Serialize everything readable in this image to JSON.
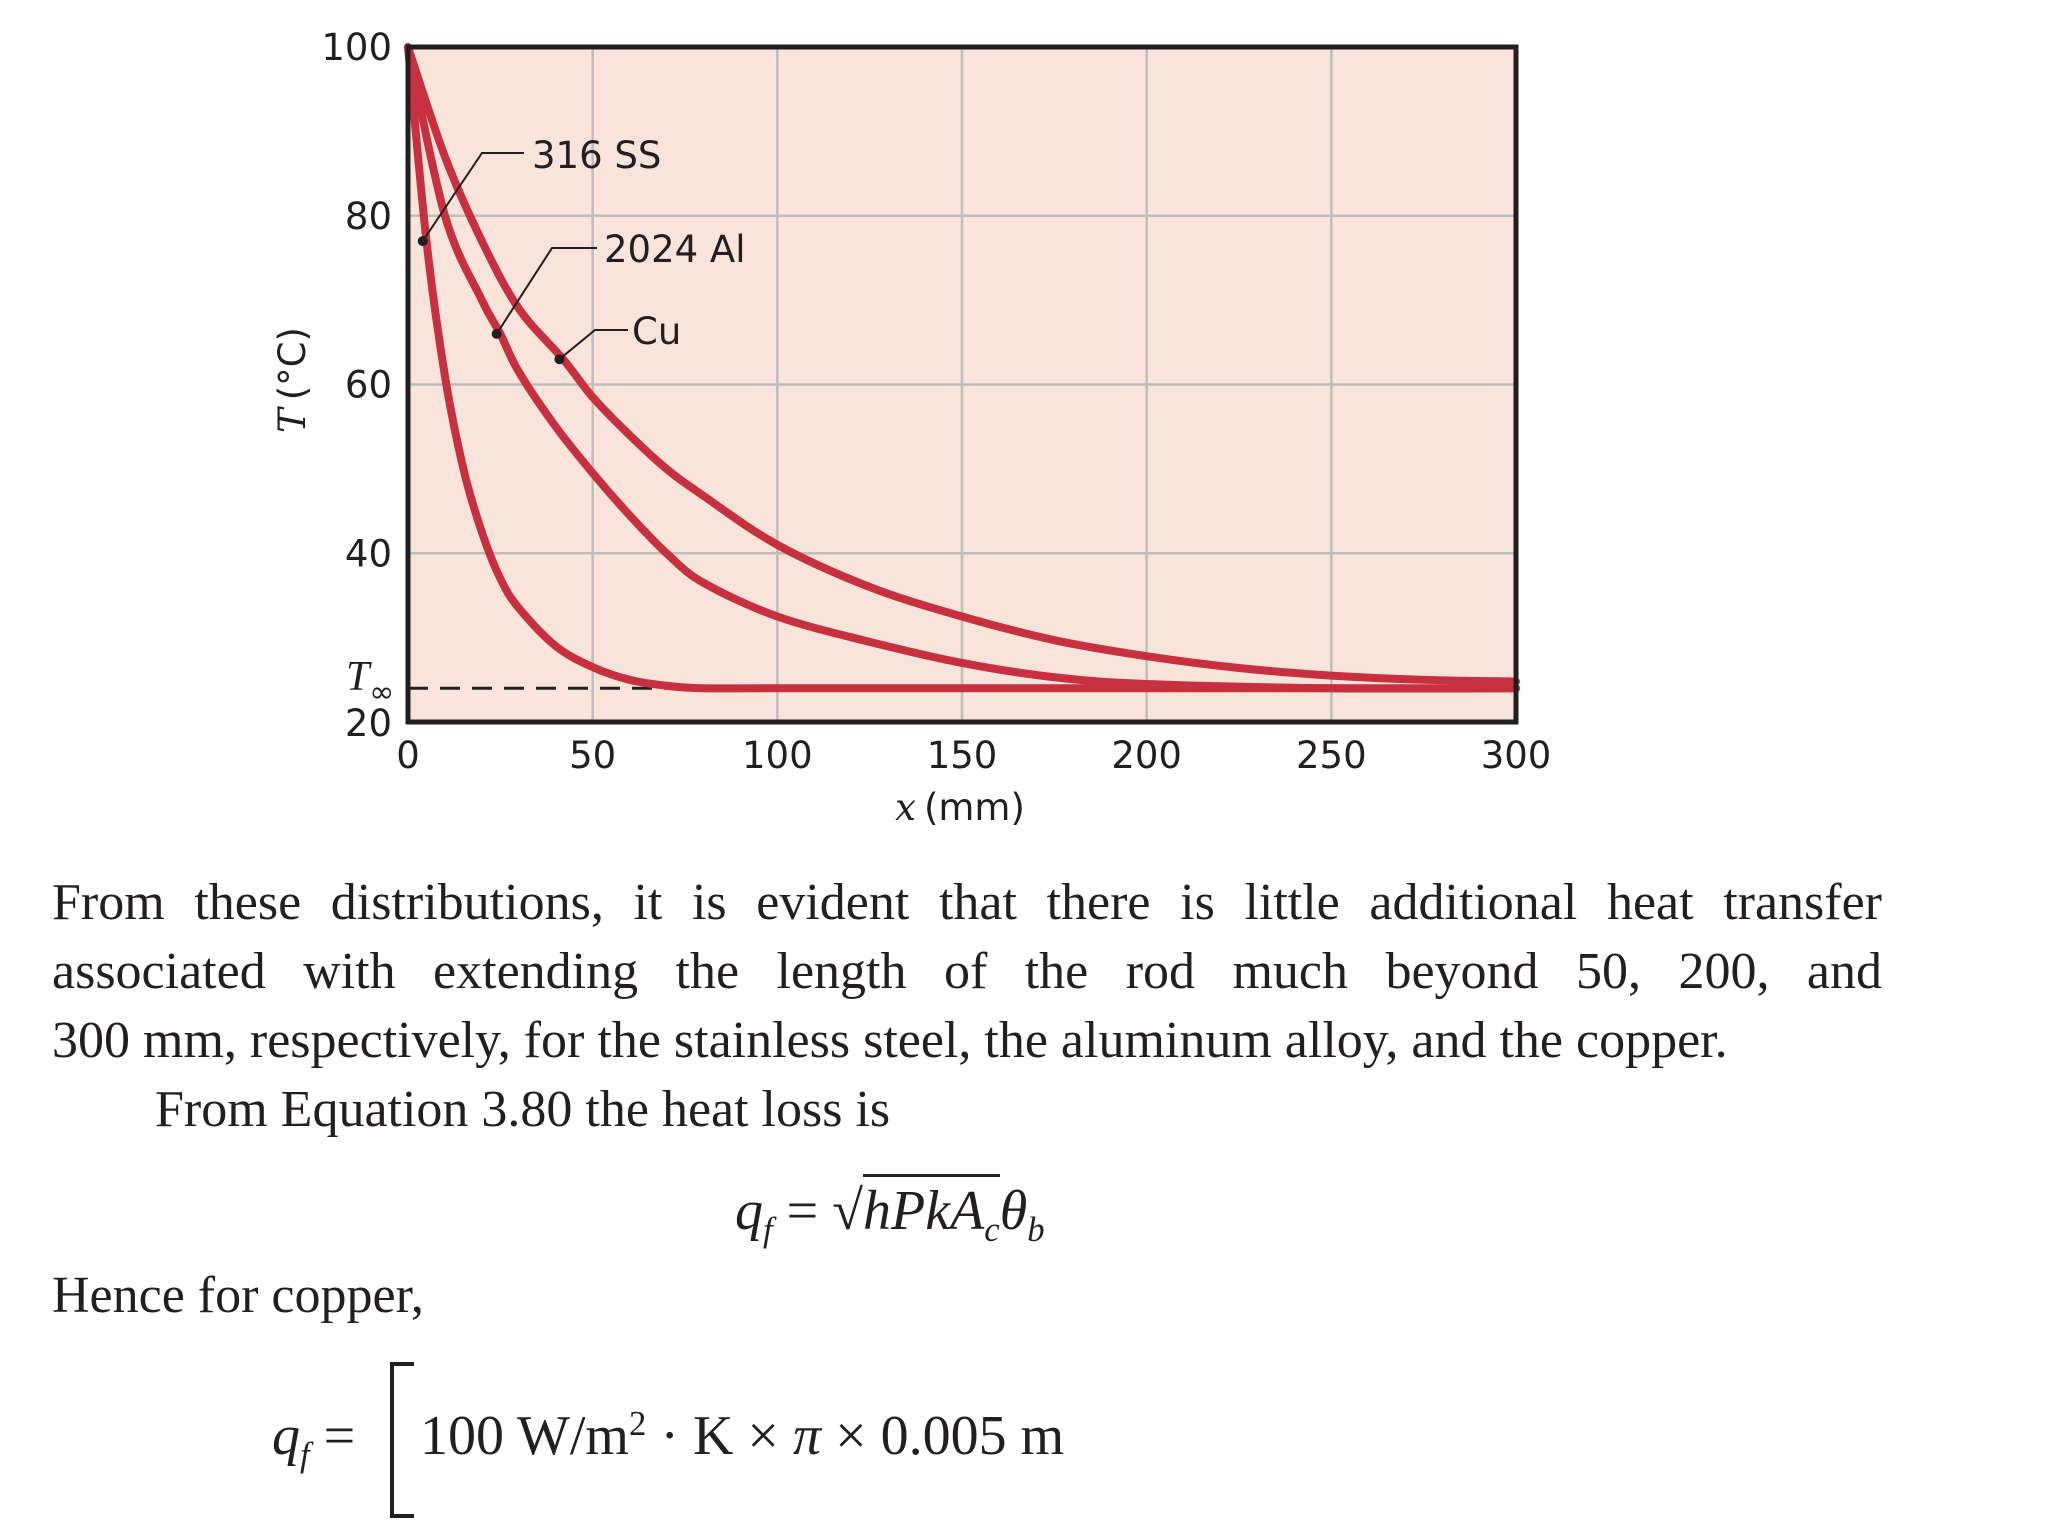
{
  "chart_data": {
    "type": "line",
    "xlabel_var": "x",
    "xlabel_unit": "(mm)",
    "ylabel_var": "T",
    "ylabel_unit": "(°C)",
    "xlim": [
      0,
      300
    ],
    "ylim": [
      20,
      100
    ],
    "x_ticks": [
      "0",
      "50",
      "100",
      "150",
      "200",
      "250",
      "300"
    ],
    "y_ticks": [
      "20",
      "40",
      "60",
      "80",
      "100"
    ],
    "grid": true,
    "background_color": "#f9e4dc",
    "curve_color": "#c6303f",
    "t_inf_label": "T",
    "t_inf_sub": "∞",
    "t_inf_value": 24,
    "series": [
      {
        "name": "316 SS",
        "x": [
          0,
          5,
          10,
          15,
          20,
          25,
          30,
          40,
          50,
          60,
          70,
          80,
          100,
          150,
          200,
          250,
          300
        ],
        "values": [
          100,
          77,
          61,
          50,
          42.5,
          37,
          33.5,
          29,
          26.5,
          25,
          24.3,
          24,
          24,
          24,
          24,
          24,
          24
        ],
        "label_anchor": [
          4,
          77
        ]
      },
      {
        "name": "2024 Al",
        "x": [
          0,
          10,
          20,
          25,
          30,
          40,
          50,
          60,
          70,
          80,
          100,
          125,
          150,
          175,
          200,
          250,
          300
        ],
        "values": [
          100,
          80,
          70,
          66,
          61.5,
          55,
          49.5,
          44.5,
          40,
          36.5,
          32.5,
          29.5,
          27,
          25.3,
          24.5,
          24,
          24
        ],
        "label_anchor": [
          24,
          66
        ]
      },
      {
        "name": "Cu",
        "x": [
          0,
          10,
          20,
          30,
          42,
          50,
          60,
          70,
          80,
          100,
          125,
          150,
          175,
          200,
          225,
          250,
          275,
          300
        ],
        "values": [
          100,
          87,
          77,
          69,
          63,
          58.5,
          54,
          50,
          46.8,
          41,
          36,
          32.5,
          29.7,
          27.8,
          26.4,
          25.5,
          25,
          24.8
        ],
        "label_anchor": [
          41,
          63
        ]
      }
    ]
  },
  "text": {
    "para1_lines": [
      "From these distributions, it is evident that there is little additional heat transfer",
      "associated with extending the length of the rod much beyond 50, 200, and",
      "300 mm, respectively, for the stainless steel, the aluminum alloy, and the copper."
    ],
    "para2": "From Equation 3.80 the heat loss is",
    "eq1": {
      "q": "q",
      "q_sub": "f",
      "equals": " = ",
      "radicand_main": "hPkA",
      "radicand_sub": "c",
      "theta": "θ",
      "theta_sub": "b"
    },
    "para3": "Hence for copper,",
    "eq2": {
      "q": "q",
      "q_sub": "f",
      "equals": " =",
      "value": "100 W/m",
      "sup": "2",
      "rest": " · K × ",
      "pi": "π",
      "rest2": " × 0.005 m"
    }
  }
}
